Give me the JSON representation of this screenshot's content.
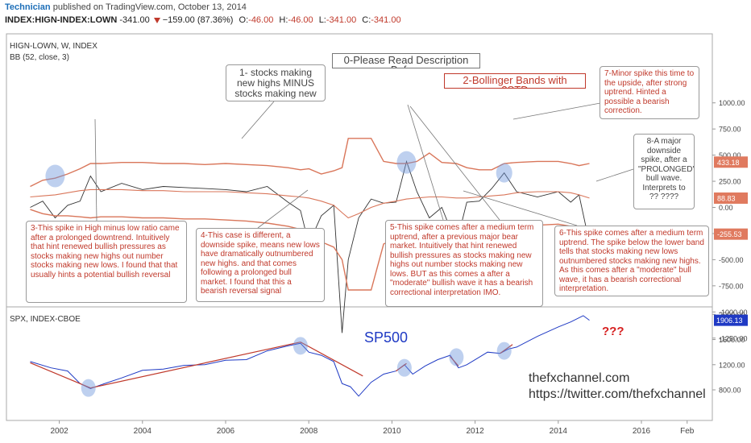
{
  "header": {
    "author": "Technician",
    "published": "published on TradingView.com, October 13, 2014",
    "symbol": "INDEX:HIGN-INDEX:LOWN",
    "last": "-341.00",
    "change": "−159.00 (87.36%)",
    "o_label": "O:",
    "o_value": "-46.00",
    "h_label": "H:",
    "h_value": "-46.00",
    "l_label": "L:",
    "l_value": "-341.00",
    "c_label": "C:",
    "c_value": "-341.00"
  },
  "top_pane": {
    "title": "HIGN-LOWN, W, INDEX",
    "indicator": "BB (52, close, 3)",
    "y_ticks": [
      "1000.00",
      "750.00",
      "500.00",
      "250.00",
      "0.00",
      "-250.00",
      "-500.00",
      "-750.00",
      "-1000.00",
      "-1250.00"
    ],
    "badges": [
      {
        "text": "433.18",
        "color": "#e07a5f"
      },
      {
        "text": "88.83",
        "color": "#e07a5f"
      },
      {
        "text": "-255.53",
        "color": "#e07a5f"
      }
    ]
  },
  "bottom_pane": {
    "title": "SPX, INDEX-CBOE",
    "y_ticks": [
      "2000.00",
      "1600.00",
      "1200.00",
      "800.00"
    ],
    "badge": {
      "text": "1906.13",
      "color": "#1f3ac4"
    },
    "label": "SP500",
    "question": "???"
  },
  "x_axis": [
    "2002",
    "2004",
    "2006",
    "2008",
    "2010",
    "2012",
    "2014",
    "2016",
    "Feb"
  ],
  "annotations": {
    "a0": "0-Please Read Description Before",
    "a1": "1- stocks making new highs MINUS stocks making new low",
    "a2": "2-Bollinger Bands with 3STD",
    "a3": "3-This spike in High minus low ratio came after a prolonged downtrend. Intuitively that hint renewed bullish pressures as stocks making new highs out number stocks making new lows. I found that that usually hints a potential bullish reversal",
    "a4": "4-This case is different, a downside spike, means new lows have dramatically outnumbered new highs. and that comes following a prolonged bull market. I found that this a bearish reversal signal",
    "a5": "5-This spike comes after a medium term uptrend, after a previous major bear market. Intuitively that hint renewed bullish pressures as stocks making new highs out number stocks making new lows. BUT as this comes a after a \"moderate\" bullish wave it has a bearish correctional interpretation IMO.",
    "a6": "6-This spike comes after a medium term uptrend. The spike below the lower band tells that stocks making new lows outnumbered stocks making new highs. As this comes after a \"moderate\" bull wave, it has a bearish correctional interpretation.",
    "a7": "7-Minor spike this time to the upside, after strong uptrend. Hinted a possible  a bearish correction.",
    "a8": "8-A major downside spike, after a \"PROLONGED\" bull wave. Interprets to ?? ????"
  },
  "watermark": {
    "line1": "thefxchannel.com",
    "line2": "https://twitter.com/thefxchannel"
  },
  "chart_data": [
    {
      "type": "line",
      "title": "HIGN-LOWN, W, INDEX",
      "x": [
        2001.3,
        2001.6,
        2001.9,
        2002.2,
        2002.5,
        2002.75,
        2003.0,
        2003.5,
        2004.0,
        2004.5,
        2005.0,
        2005.5,
        2006.0,
        2006.5,
        2007.0,
        2007.5,
        2007.8,
        2008.0,
        2008.3,
        2008.6,
        2008.8,
        2008.95,
        2009.2,
        2009.5,
        2009.8,
        2010.1,
        2010.35,
        2010.6,
        2010.9,
        2011.2,
        2011.55,
        2011.8,
        2012.1,
        2012.4,
        2012.7,
        2013.0,
        2013.5,
        2014.0,
        2014.3,
        2014.5,
        2014.75
      ],
      "series": [
        {
          "values": [
            0,
            60,
            -100,
            20,
            60,
            300,
            150,
            230,
            170,
            200,
            190,
            180,
            170,
            150,
            200,
            50,
            -30,
            -350,
            -80,
            20,
            -1200,
            -500,
            -100,
            80,
            40,
            50,
            440,
            150,
            -100,
            0,
            -350,
            50,
            60,
            180,
            330,
            150,
            100,
            150,
            50,
            120,
            -341
          ]
        },
        {
          "name": "BB upper",
          "values": [
            200,
            260,
            280,
            320,
            370,
            420,
            420,
            430,
            430,
            420,
            420,
            410,
            420,
            410,
            400,
            380,
            360,
            370,
            320,
            350,
            380,
            660,
            660,
            660,
            440,
            420,
            420,
            440,
            520,
            430,
            420,
            380,
            360,
            360,
            420,
            430,
            440,
            440,
            420,
            400,
            420
          ]
        },
        {
          "name": "BB basis",
          "values": [
            100,
            110,
            120,
            140,
            160,
            170,
            170,
            170,
            160,
            160,
            150,
            150,
            150,
            140,
            130,
            110,
            100,
            90,
            60,
            20,
            -50,
            -100,
            -60,
            0,
            40,
            60,
            80,
            90,
            100,
            100,
            90,
            90,
            100,
            110,
            120,
            140,
            150,
            150,
            140,
            120,
            89
          ]
        },
        {
          "name": "BB lower",
          "values": [
            -20,
            -60,
            -80,
            -80,
            -90,
            -100,
            -90,
            -90,
            -100,
            -100,
            -110,
            -110,
            -120,
            -130,
            -150,
            -180,
            -210,
            -260,
            -330,
            -380,
            -500,
            -790,
            -790,
            -790,
            -350,
            -300,
            -250,
            -290,
            -300,
            -270,
            -260,
            -220,
            -210,
            -200,
            -200,
            -180,
            -170,
            -160,
            -180,
            -220,
            -256
          ]
        }
      ],
      "ylim": [
        -1400,
        1100
      ]
    },
    {
      "type": "line",
      "title": "SPX, INDEX-CBOE",
      "x": [
        2001.3,
        2001.8,
        2002.2,
        2002.5,
        2002.75,
        2003.0,
        2003.5,
        2004.0,
        2004.5,
        2005.0,
        2005.5,
        2006.0,
        2006.5,
        2007.0,
        2007.5,
        2007.8,
        2008.0,
        2008.3,
        2008.6,
        2008.8,
        2009.0,
        2009.2,
        2009.5,
        2009.8,
        2010.1,
        2010.3,
        2010.5,
        2010.8,
        2011.1,
        2011.4,
        2011.6,
        2011.8,
        2012.1,
        2012.3,
        2012.6,
        2012.8,
        2013.0,
        2013.5,
        2014.0,
        2014.3,
        2014.6,
        2014.75
      ],
      "series": [
        {
          "name": "SPX",
          "values": [
            1250,
            1150,
            1100,
            900,
            820,
            880,
            990,
            1110,
            1130,
            1190,
            1200,
            1270,
            1280,
            1420,
            1500,
            1540,
            1400,
            1350,
            1250,
            900,
            850,
            700,
            920,
            1050,
            1100,
            1200,
            1050,
            1180,
            1280,
            1350,
            1150,
            1200,
            1320,
            1400,
            1380,
            1450,
            1480,
            1650,
            1800,
            1880,
            1980,
            1906
          ]
        }
      ],
      "ylim": [
        600,
        2100
      ]
    }
  ]
}
